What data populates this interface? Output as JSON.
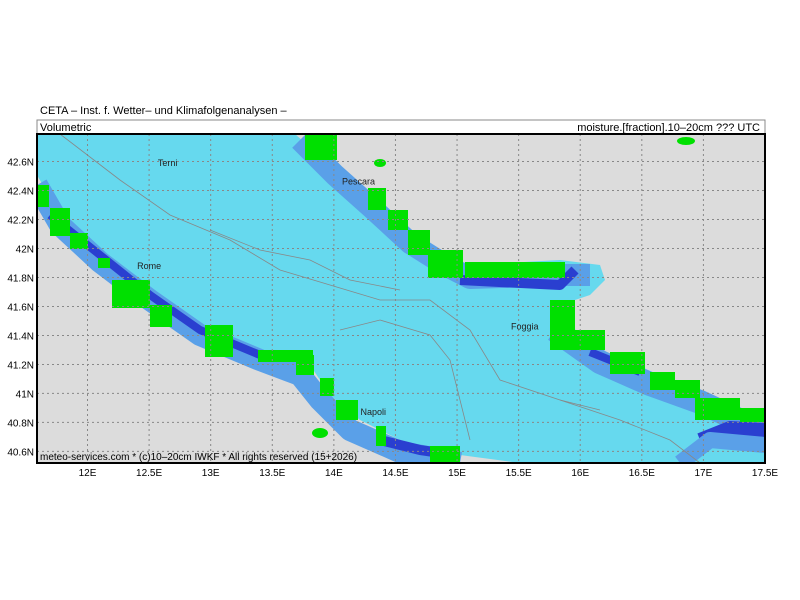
{
  "header": {
    "title": "CETA – Inst. f. Wetter– und Klimafolgenanalysen –",
    "left_label": "Volumetric",
    "right_label": "moisture.[fraction].10–20cm ??? UTC"
  },
  "map": {
    "lonlim": [
      11.59,
      17.5
    ],
    "latlim": [
      40.52,
      42.79
    ],
    "lon_ticks": [
      {
        "value": 12,
        "label": "12E"
      },
      {
        "value": 12.5,
        "label": "12.5E"
      },
      {
        "value": 13,
        "label": "13E"
      },
      {
        "value": 13.5,
        "label": "13.5E"
      },
      {
        "value": 14,
        "label": "14E"
      },
      {
        "value": 14.5,
        "label": "14.5E"
      },
      {
        "value": 15,
        "label": "15E"
      },
      {
        "value": 15.5,
        "label": "15.5E"
      },
      {
        "value": 16,
        "label": "16E"
      },
      {
        "value": 16.5,
        "label": "16.5E"
      },
      {
        "value": 17,
        "label": "17E"
      },
      {
        "value": 17.5,
        "label": "17.5E"
      }
    ],
    "lat_ticks": [
      {
        "value": 42.6,
        "label": "42.6N"
      },
      {
        "value": 42.4,
        "label": "42.4N"
      },
      {
        "value": 42.2,
        "label": "42.2N"
      },
      {
        "value": 42,
        "label": "42N"
      },
      {
        "value": 41.8,
        "label": "41.8N"
      },
      {
        "value": 41.6,
        "label": "41.6N"
      },
      {
        "value": 41.4,
        "label": "41.4N"
      },
      {
        "value": 41.2,
        "label": "41.2N"
      },
      {
        "value": 41,
        "label": "41N"
      },
      {
        "value": 40.8,
        "label": "40.8N"
      },
      {
        "value": 40.6,
        "label": "40.6N"
      }
    ],
    "cities": [
      {
        "name": "Terni",
        "lon": 12.65,
        "lat": 42.57
      },
      {
        "name": "Pescara",
        "lon": 14.2,
        "lat": 42.44
      },
      {
        "name": "Rome",
        "lon": 12.5,
        "lat": 41.86
      },
      {
        "name": "Foggia",
        "lon": 15.55,
        "lat": 41.44
      },
      {
        "name": "Napoli",
        "lon": 14.32,
        "lat": 40.85
      }
    ]
  },
  "footer": "meteo-services.com * (c)10–20cm IWKF * All rights reserved (15+2026)"
}
